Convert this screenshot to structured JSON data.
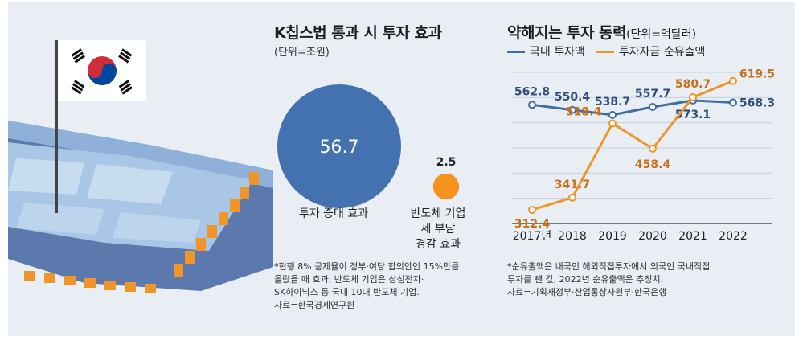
{
  "colors": {
    "background": "#e8eef4",
    "domestic": "#3d6ea8",
    "outflow": "#f0952a",
    "bubble_large": "#4472b0",
    "bubble_small": "#f7921e"
  },
  "left_chart": {
    "title": "K칩스법 통과 시 투자 효과",
    "unit": "(단위=조원)",
    "notes": [
      "*현행 8% 공제율이 정부·여당 합의안인 15%만큼",
      "올랐을 때 효과, 반도체 기업은 삼성전자·",
      "SK하이닉스 등 국내 10대 반도체 기업.",
      "자료=한국경제연구원"
    ]
  },
  "right_chart": {
    "title": "약해지는 투자 동력",
    "unit": "(단위=억달러)",
    "notes": [
      "*순유출액은 내국인 해외직접투자에서 외국인 국내직접",
      "투자를 뺀 값, 2022년 순유출액은 추정치.",
      "자료=기획재정부·산업통상자원부·한국은행"
    ]
  },
  "chart_data": [
    {
      "type": "bubble",
      "title": "K칩스법 통과 시 투자 효과",
      "unit": "(단위=조원)",
      "categories": [
        "투자 증대 효과",
        "반도체 기업 세 부담 경감 효과"
      ],
      "category_lines": [
        [
          "투자 증대 효과"
        ],
        [
          "반도체 기업",
          "세 부담",
          "경감 효과"
        ]
      ],
      "values": [
        56.7,
        2.5
      ],
      "value_labels": [
        "56.7",
        "2.5"
      ]
    },
    {
      "type": "line",
      "title": "약해지는 투자 동력",
      "unit": "(단위=억달러)",
      "x": [
        "2017년",
        "2018",
        "2019",
        "2020",
        "2021",
        "2022"
      ],
      "series": [
        {
          "name": "국내 투자액",
          "values": [
            562.8,
            550.4,
            538.7,
            557.7,
            573.1,
            568.3
          ],
          "labels": [
            "562.8",
            "550.4",
            "538.7",
            "557.7",
            "573.1",
            "568.3"
          ]
        },
        {
          "name": "투자자금 순유출액",
          "values": [
            312.4,
            341.7,
            518.4,
            458.4,
            580.7,
            619.5
          ],
          "labels": [
            "312.4",
            "341.7",
            "518.4",
            "458.4",
            "580.7",
            "619.5"
          ]
        }
      ],
      "ylim": [
        280,
        640
      ],
      "grid": true,
      "legend": "top"
    }
  ]
}
